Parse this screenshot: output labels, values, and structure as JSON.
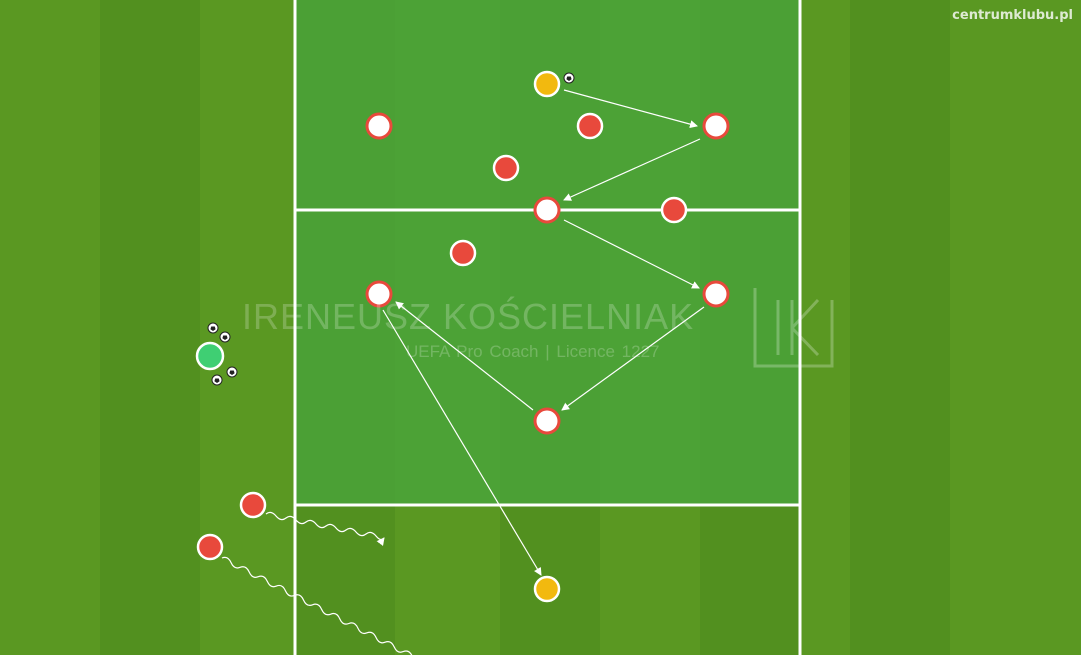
{
  "site_label": "centrumklubu.pl",
  "watermark": {
    "name": "IRENEUSZ KOŚCIELNIAK",
    "subtitle": "UEFA Pro Coach  |  Licence 1227",
    "logo_letters": "IK"
  },
  "colors": {
    "grass_dark": "#4f8a1e",
    "grass_light": "#5a971f",
    "zone_bright": "#4aa63a",
    "line": "#ffffff",
    "red_player": "#e8493c",
    "white_player": "#ffffff",
    "white_player_ring": "#e8493c",
    "yellow_player": "#f2b90f",
    "green_player": "#3fcf73",
    "arrow": "#ffffff"
  },
  "icons": [
    "ball-icon",
    "pass-arrow",
    "dribble-run-arrow"
  ]
}
